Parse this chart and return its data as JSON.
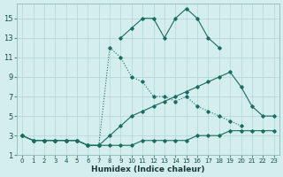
{
  "xlabel": "Humidex (Indice chaleur)",
  "bg_color": "#d4eeee",
  "grid_color": "#b8d8d8",
  "line_color": "#1a6b60",
  "xlim": [
    -0.5,
    23.5
  ],
  "ylim": [
    1,
    16.5
  ],
  "xticks": [
    0,
    1,
    2,
    3,
    4,
    5,
    6,
    7,
    8,
    9,
    10,
    11,
    12,
    13,
    14,
    15,
    16,
    17,
    18,
    19,
    20,
    21,
    22,
    23
  ],
  "yticks": [
    1,
    3,
    5,
    7,
    9,
    11,
    13,
    15
  ],
  "series": [
    {
      "x": [
        0,
        1,
        2,
        3,
        4,
        5,
        6,
        7,
        8,
        9,
        10,
        11,
        12,
        13,
        14,
        15,
        16,
        17,
        18,
        19,
        20,
        21,
        22,
        23
      ],
      "y": [
        3,
        2.5,
        2.5,
        2.5,
        2.5,
        2.5,
        2,
        2,
        2,
        2,
        2,
        2.5,
        2.5,
        2.5,
        2.5,
        2.5,
        3,
        3,
        3,
        3.5,
        3.5,
        3.5,
        3.5,
        3.5
      ],
      "style": "-",
      "marker": "D",
      "markersize": 1.8,
      "linewidth": 0.8
    },
    {
      "x": [
        9,
        10,
        11,
        12,
        13,
        14,
        15,
        16,
        17,
        18
      ],
      "y": [
        13,
        14,
        15,
        15,
        13,
        15,
        16,
        15,
        13,
        12
      ],
      "style": "-",
      "marker": "D",
      "markersize": 1.8,
      "linewidth": 0.8
    },
    {
      "x": [
        0,
        1,
        2,
        3,
        4,
        5,
        6,
        7,
        8,
        9,
        10,
        11,
        12,
        13,
        14,
        15,
        16,
        17,
        18,
        19,
        20
      ],
      "y": [
        3,
        2.5,
        2.5,
        2.5,
        2.5,
        2.5,
        2,
        2,
        12,
        11,
        9,
        8.5,
        7,
        7,
        6.5,
        7,
        6,
        5.5,
        5,
        4.5,
        4
      ],
      "style": ":",
      "marker": "D",
      "markersize": 1.8,
      "linewidth": 0.8
    },
    {
      "x": [
        0,
        1,
        2,
        3,
        4,
        5,
        6,
        7,
        8,
        9,
        10,
        11,
        12,
        13,
        14,
        15,
        16,
        17,
        18,
        19,
        20,
        21,
        22,
        23
      ],
      "y": [
        3,
        2.5,
        2.5,
        2.5,
        2.5,
        2.5,
        2,
        2,
        3,
        4,
        5,
        5.5,
        6,
        6.5,
        7,
        7.5,
        8,
        8.5,
        9,
        9.5,
        8,
        6,
        5,
        5
      ],
      "style": "-",
      "marker": "D",
      "markersize": 1.8,
      "linewidth": 0.8
    }
  ]
}
